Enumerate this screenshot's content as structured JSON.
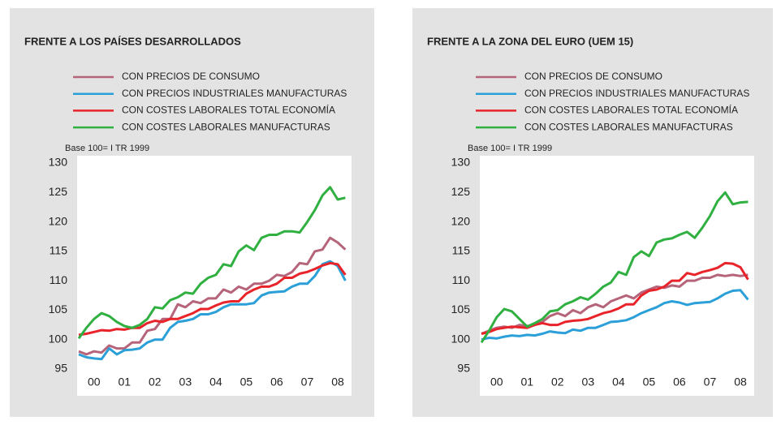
{
  "chart_data": [
    {
      "type": "line",
      "title": "FRENTE A LOS PAÍSES DESARROLLADOS",
      "note": "Base 100= I TR 1999",
      "categories": [
        null,
        null,
        "00",
        null,
        null,
        null,
        "01",
        null,
        null,
        null,
        "02",
        null,
        null,
        null,
        "03",
        null,
        null,
        null,
        "04",
        null,
        null,
        null,
        "05",
        null,
        null,
        null,
        "06",
        null,
        null,
        null,
        "07",
        null,
        null,
        null,
        "08",
        null
      ],
      "ylim": [
        95,
        130
      ],
      "yticks": [
        95,
        100,
        105,
        110,
        115,
        120,
        125,
        130
      ],
      "series": [
        {
          "name": "CON PRECIOS DE CONSUMO",
          "color": "#b5647a",
          "values": [
            98,
            97.5,
            98,
            97.8,
            99,
            98.5,
            98.5,
            99.5,
            99.5,
            101.5,
            101.8,
            103.5,
            103.5,
            106,
            105.5,
            106.5,
            106.2,
            107,
            107,
            108.5,
            108,
            109,
            108.5,
            109.5,
            109.5,
            110,
            111,
            110.8,
            111.5,
            113,
            112.8,
            115,
            115.3,
            117.3,
            116.5,
            115.3
          ]
        },
        {
          "name": "CON PRECIOS INDUSTRIALES MANUFACTURAS",
          "color": "#2a9fd8",
          "values": [
            97.5,
            97,
            96.8,
            96.7,
            98.5,
            97.5,
            98.2,
            98.3,
            98.5,
            99.5,
            100,
            100,
            102,
            103,
            103.2,
            103.5,
            104.3,
            104.3,
            104.7,
            105.5,
            106,
            106,
            106,
            106.2,
            107.5,
            108,
            108.1,
            108.2,
            109,
            109.5,
            109.5,
            110.8,
            112.8,
            113.3,
            112.5,
            110
          ]
        },
        {
          "name": "CON COSTES LABORALES TOTAL ECONOMÍA",
          "color": "#e8232a",
          "values": [
            100.8,
            101,
            101.3,
            101.6,
            101.5,
            101.8,
            101.7,
            102,
            102,
            102.8,
            103.2,
            103,
            103.5,
            103.5,
            104,
            104.5,
            105.2,
            105.2,
            105.8,
            106.3,
            106.5,
            106.5,
            107.8,
            108.5,
            109,
            109,
            109.5,
            110.5,
            110.5,
            111.2,
            111.5,
            112,
            112.6,
            113,
            112.8,
            111
          ]
        },
        {
          "name": "CON COSTES LABORALES MANUFACTURAS",
          "color": "#2fb040",
          "values": [
            100.2,
            102,
            103.5,
            104.5,
            104,
            103,
            102.3,
            102,
            102.5,
            103.5,
            105.5,
            105.3,
            106.7,
            107.2,
            108,
            107.8,
            109.5,
            110.5,
            111,
            112.8,
            112.5,
            115,
            116,
            115.2,
            117.3,
            117.8,
            117.8,
            118.4,
            118.4,
            118.2,
            120,
            122,
            124.5,
            125.9,
            123.8,
            124.1
          ]
        }
      ]
    },
    {
      "type": "line",
      "title": "FRENTE A LA ZONA DEL EURO (UEM 15)",
      "note": "Base 100= I TR 1999",
      "categories": [
        null,
        null,
        "00",
        null,
        null,
        null,
        "01",
        null,
        null,
        null,
        "02",
        null,
        null,
        null,
        "03",
        null,
        null,
        null,
        "04",
        null,
        null,
        null,
        "05",
        null,
        null,
        null,
        "06",
        null,
        null,
        null,
        "07",
        null,
        null,
        null,
        "08",
        null
      ],
      "ylim": [
        95,
        130
      ],
      "yticks": [
        95,
        100,
        105,
        110,
        115,
        120,
        125,
        130
      ],
      "series": [
        {
          "name": "CON PRECIOS DE CONSUMO",
          "color": "#b5647a",
          "values": [
            101,
            101.5,
            102,
            102.2,
            102,
            102.5,
            102.3,
            102.5,
            103,
            104,
            104.5,
            104,
            105,
            104.5,
            105.5,
            106,
            105.5,
            106.5,
            107,
            107.5,
            107,
            108,
            108.5,
            109,
            108.8,
            109.2,
            109,
            110,
            110,
            110.5,
            110.5,
            111,
            110.8,
            111,
            110.8,
            111
          ]
        },
        {
          "name": "CON PRECIOS INDUSTRIALES MANUFACTURAS",
          "color": "#2a9fd8",
          "values": [
            100,
            100.3,
            100.2,
            100.5,
            100.7,
            100.6,
            100.8,
            100.7,
            101,
            101.4,
            101.2,
            101.1,
            101.7,
            101.5,
            102,
            102,
            102.5,
            103,
            103.1,
            103.3,
            103.8,
            104.5,
            105,
            105.5,
            106.2,
            106.5,
            106.3,
            105.9,
            106.2,
            106.3,
            106.4,
            107,
            107.8,
            108.3,
            108.4,
            106.8
          ]
        },
        {
          "name": "CON COSTES LABORALES TOTAL ECONOMÍA",
          "color": "#e8232a",
          "values": [
            101,
            101.3,
            101.8,
            102,
            102.2,
            102.1,
            102,
            102.5,
            102.8,
            102.5,
            102.5,
            103,
            103.2,
            103.3,
            103.5,
            104,
            104.5,
            104.8,
            105.3,
            106,
            106,
            107.5,
            108.3,
            108.5,
            109,
            110,
            110,
            111.3,
            111,
            111.5,
            111.8,
            112.2,
            113,
            112.9,
            112.3,
            110.2
          ]
        },
        {
          "name": "CON COSTES LABORALES MANUFACTURAS",
          "color": "#2fb040",
          "values": [
            99.5,
            101.5,
            103.8,
            105.2,
            104.8,
            103.5,
            102.2,
            102.8,
            103.5,
            104.8,
            105,
            106,
            106.5,
            107.2,
            106.8,
            107.8,
            109,
            109.7,
            111.5,
            111,
            114,
            115,
            114.2,
            116.5,
            117,
            117.2,
            117.8,
            118.3,
            117.3,
            119,
            121,
            123.5,
            125,
            123,
            123.3,
            123.4
          ]
        }
      ]
    }
  ]
}
